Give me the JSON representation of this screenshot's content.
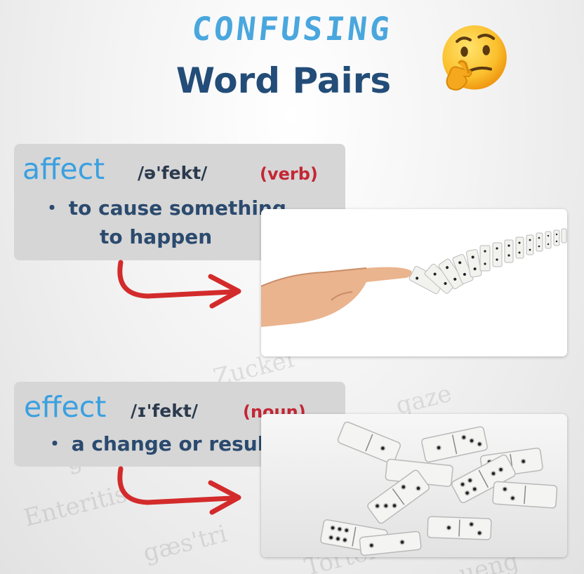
{
  "title": {
    "line1": "CONFUSING",
    "line2": "Word Pairs"
  },
  "emoji": "thinking-face",
  "background_words": [
    "gaze",
    "gastritis",
    "Tortelett",
    "Enteritis",
    "Zucker",
    "ueng",
    "gæs'tri"
  ],
  "entries": [
    {
      "word": "affect",
      "ipa": "/ə'fekt/",
      "pos": "(verb)",
      "definition_line1": "・ to cause something",
      "definition_line2": "to happen",
      "image": "finger-pushing-falling-dominoes"
    },
    {
      "word": "effect",
      "ipa": "/ɪ'fekt/",
      "pos": "(noun)",
      "definition_line1": "・ a change or result",
      "image": "scattered-dominoes"
    }
  ],
  "colors": {
    "word": "#3aa0e0",
    "title": "#234d78",
    "confusing": "#4aa7de",
    "pos": "#c32735",
    "arrow": "#d32b2b",
    "card": "#d6d6d6"
  }
}
